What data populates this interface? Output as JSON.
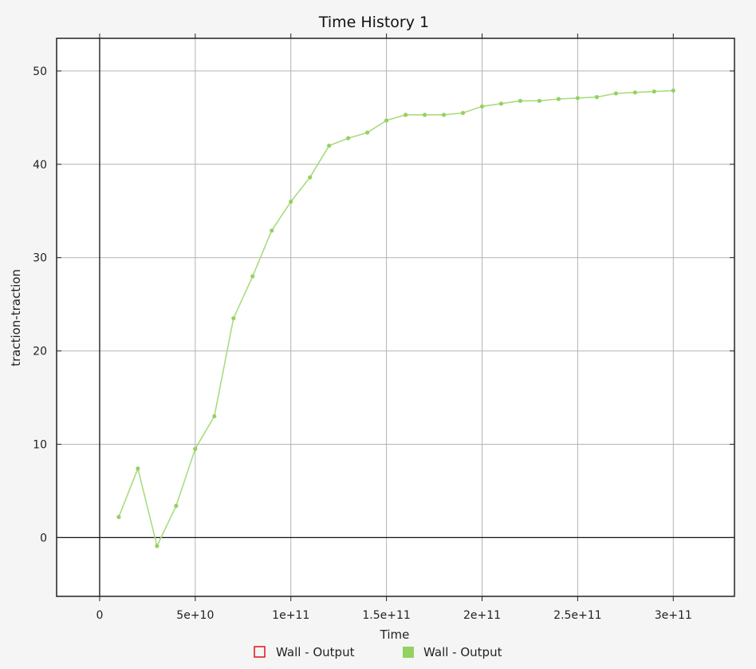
{
  "chart_data": {
    "type": "line",
    "title": "Time History 1",
    "xlabel": "Time",
    "ylabel": "traction-traction",
    "xlim": [
      -22500000000,
      332000000000
    ],
    "ylim": [
      -6.3,
      53.5
    ],
    "grid": true,
    "x_ticks": [
      0,
      50000000000,
      100000000000,
      150000000000,
      200000000000,
      250000000000,
      300000000000
    ],
    "x_tick_labels": [
      "0",
      "5e+10",
      "1e+11",
      "1.5e+11",
      "2e+11",
      "2.5e+11",
      "3e+11"
    ],
    "y_ticks": [
      0,
      10,
      20,
      30,
      40,
      50
    ],
    "y_tick_labels": [
      "0",
      "10",
      "20",
      "30",
      "40",
      "50"
    ],
    "legend_placement": "bottom-center",
    "legend": [
      {
        "label": "Wall - Output",
        "marker": "hollow-square",
        "color": "#dd2222"
      },
      {
        "label": "Wall - Output",
        "marker": "filled-square",
        "color": "#94d160"
      }
    ],
    "series": [
      {
        "color": "#a8dc80",
        "marker_color": "#94d160",
        "x": [
          10000000000,
          20000000000,
          30000000000,
          40000000000,
          50000000000,
          60000000000,
          70000000000,
          80000000000,
          90000000000,
          100000000000,
          110000000000,
          120000000000,
          130000000000,
          140000000000,
          150000000000,
          160000000000,
          170000000000,
          180000000000,
          190000000000,
          200000000000,
          210000000000,
          220000000000,
          230000000000,
          240000000000,
          250000000000,
          260000000000,
          270000000000,
          280000000000,
          290000000000,
          300000000000
        ],
        "y": [
          2.2,
          7.4,
          -0.9,
          3.4,
          9.5,
          13.0,
          23.5,
          28.0,
          32.9,
          36.0,
          38.6,
          42.0,
          42.8,
          43.4,
          44.7,
          45.3,
          45.3,
          45.3,
          45.5,
          46.2,
          46.5,
          46.8,
          46.8,
          47.0,
          47.1,
          47.2,
          47.6,
          47.7,
          47.8,
          47.9
        ]
      }
    ]
  }
}
